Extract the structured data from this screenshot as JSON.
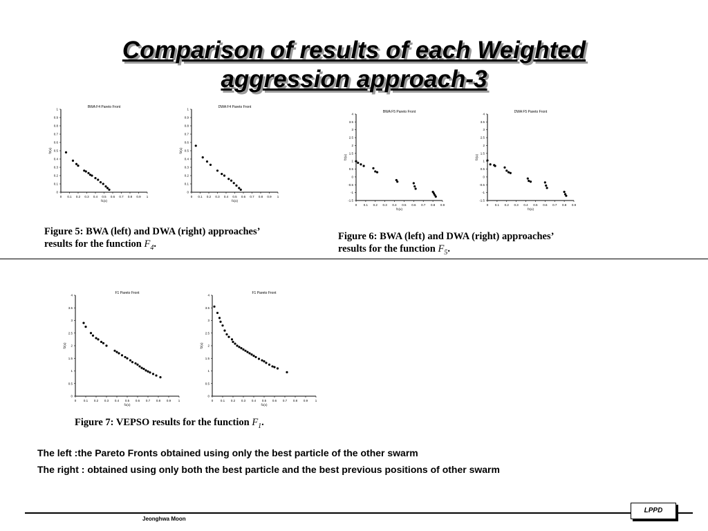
{
  "slide": {
    "title_line1": "Comparison of results of each Weighted",
    "title_line2": "aggression approach-3",
    "note_left": "The left :the Pareto Fronts obtained using only the best particle of the other swarm",
    "note_right": "The right : obtained using only both the best particle and the best previous positions of other swarm",
    "author": "Jeonghwa Moon",
    "badge": "LPPD"
  },
  "captions": {
    "fig5": {
      "line1": "Figure 5:  BWA (left) and DWA (right) approaches’",
      "line2_prefix": "results for the function ",
      "func": "F",
      "sub": "4",
      "suffix": "."
    },
    "fig6": {
      "line1": "Figure 6:  BWA (left) and DWA (right) approaches’",
      "line2_prefix": "results for the function ",
      "func": "F",
      "sub": "5",
      "suffix": "."
    },
    "fig7": {
      "line1_prefix": "Figure 7:  VEPSO results for the function ",
      "func": "F",
      "sub": "1",
      "suffix": "."
    }
  },
  "chart_data": [
    {
      "id": "fig5-left",
      "type": "scatter",
      "title": "BWA F4 Pareto Front",
      "xlabel": "f1(x)",
      "ylabel": "f2(x)",
      "xlim": [
        0,
        1
      ],
      "ylim": [
        0,
        1
      ],
      "xticks": [
        "0",
        "0.1",
        "0.2",
        "0.3",
        "0.4",
        "0.5",
        "0.6",
        "0.7",
        "0.8",
        "0.9",
        "1"
      ],
      "yticks": [
        "0",
        "0.1",
        "0.2",
        "0.3",
        "0.4",
        "0.5",
        "0.6",
        "0.7",
        "0.8",
        "0.9",
        "1"
      ],
      "points": [
        [
          0.06,
          0.48
        ],
        [
          0.14,
          0.38
        ],
        [
          0.18,
          0.34
        ],
        [
          0.2,
          0.32
        ],
        [
          0.27,
          0.26
        ],
        [
          0.29,
          0.25
        ],
        [
          0.32,
          0.23
        ],
        [
          0.34,
          0.21
        ],
        [
          0.36,
          0.2
        ],
        [
          0.4,
          0.17
        ],
        [
          0.43,
          0.15
        ],
        [
          0.46,
          0.12
        ],
        [
          0.49,
          0.1
        ],
        [
          0.52,
          0.07
        ],
        [
          0.54,
          0.05
        ],
        [
          0.56,
          0.03
        ]
      ]
    },
    {
      "id": "fig5-right",
      "type": "scatter",
      "title": "DWA F4 Pareto Front",
      "xlabel": "f1(x)",
      "ylabel": "f2(x)",
      "xlim": [
        0,
        1
      ],
      "ylim": [
        0,
        1
      ],
      "xticks": [
        "0",
        "0.1",
        "0.2",
        "0.3",
        "0.4",
        "0.5",
        "0.6",
        "0.7",
        "0.8",
        "0.9",
        "1"
      ],
      "yticks": [
        "0",
        "0.1",
        "0.2",
        "0.3",
        "0.4",
        "0.5",
        "0.6",
        "0.7",
        "0.8",
        "0.9",
        "1"
      ],
      "points": [
        [
          0.05,
          0.56
        ],
        [
          0.13,
          0.42
        ],
        [
          0.18,
          0.37
        ],
        [
          0.22,
          0.33
        ],
        [
          0.3,
          0.26
        ],
        [
          0.35,
          0.22
        ],
        [
          0.38,
          0.2
        ],
        [
          0.43,
          0.16
        ],
        [
          0.46,
          0.14
        ],
        [
          0.49,
          0.11
        ],
        [
          0.52,
          0.08
        ],
        [
          0.55,
          0.05
        ],
        [
          0.57,
          0.03
        ]
      ]
    },
    {
      "id": "fig6-left",
      "type": "scatter",
      "title": "BWA F5 Pareto Front",
      "xlabel": "f1(x)",
      "ylabel": "f2(x)",
      "xlim": [
        0,
        0.9
      ],
      "ylim": [
        -1.5,
        4
      ],
      "xticks": [
        "0",
        "0.1",
        "0.2",
        "0.3",
        "0.4",
        "0.5",
        "0.6",
        "0.7",
        "0.8",
        "0.9"
      ],
      "yticks": [
        "-1.5",
        "-1",
        "-0.5",
        "0",
        "0.5",
        "1",
        "1.5",
        "2",
        "2.5",
        "3",
        "3.5",
        "4"
      ],
      "points": [
        [
          0.0,
          1.0
        ],
        [
          0.02,
          0.9
        ],
        [
          0.05,
          0.8
        ],
        [
          0.08,
          0.7
        ],
        [
          0.18,
          0.55
        ],
        [
          0.2,
          0.35
        ],
        [
          0.22,
          0.3
        ],
        [
          0.42,
          -0.2
        ],
        [
          0.43,
          -0.3
        ],
        [
          0.6,
          -0.4
        ],
        [
          0.61,
          -0.6
        ],
        [
          0.62,
          -0.75
        ],
        [
          0.8,
          -0.95
        ],
        [
          0.81,
          -1.05
        ],
        [
          0.82,
          -1.15
        ],
        [
          0.83,
          -1.25
        ]
      ]
    },
    {
      "id": "fig6-right",
      "type": "scatter",
      "title": "DWA F5 Pareto Front",
      "xlabel": "f1(x)",
      "ylabel": "f2(x)",
      "xlim": [
        0,
        0.9
      ],
      "ylim": [
        -1.5,
        4
      ],
      "xticks": [
        "0",
        "0.1",
        "0.2",
        "0.3",
        "0.4",
        "0.5",
        "0.6",
        "0.7",
        "0.8",
        "0.9"
      ],
      "yticks": [
        "-1.5",
        "-1",
        "-0.5",
        "0",
        "0.5",
        "1",
        "1.5",
        "2",
        "2.5",
        "3",
        "3.5",
        "4"
      ],
      "points": [
        [
          0.0,
          1.05
        ],
        [
          0.03,
          0.8
        ],
        [
          0.07,
          0.75
        ],
        [
          0.08,
          0.7
        ],
        [
          0.18,
          0.6
        ],
        [
          0.2,
          0.4
        ],
        [
          0.22,
          0.3
        ],
        [
          0.24,
          0.25
        ],
        [
          0.42,
          -0.1
        ],
        [
          0.43,
          -0.25
        ],
        [
          0.45,
          -0.3
        ],
        [
          0.6,
          -0.35
        ],
        [
          0.61,
          -0.55
        ],
        [
          0.62,
          -0.7
        ],
        [
          0.8,
          -0.95
        ],
        [
          0.81,
          -1.1
        ],
        [
          0.82,
          -1.2
        ]
      ]
    },
    {
      "id": "fig7-left",
      "type": "scatter",
      "title": "F1 Pareto Front",
      "xlabel": "f1(x)",
      "ylabel": "f2(x)",
      "xlim": [
        0,
        1
      ],
      "ylim": [
        0,
        4
      ],
      "xticks": [
        "0",
        "0.1",
        "0.2",
        "0.3",
        "0.4",
        "0.5",
        "0.6",
        "0.7",
        "0.8",
        "0.9",
        "1"
      ],
      "yticks": [
        "0",
        "0.5",
        "1",
        "1.5",
        "2",
        "2.5",
        "3",
        "3.5",
        "4"
      ],
      "points": [
        [
          0.08,
          2.9
        ],
        [
          0.1,
          2.75
        ],
        [
          0.15,
          2.5
        ],
        [
          0.17,
          2.4
        ],
        [
          0.2,
          2.3
        ],
        [
          0.22,
          2.25
        ],
        [
          0.25,
          2.15
        ],
        [
          0.27,
          2.1
        ],
        [
          0.3,
          2.0
        ],
        [
          0.38,
          1.8
        ],
        [
          0.4,
          1.75
        ],
        [
          0.42,
          1.7
        ],
        [
          0.45,
          1.62
        ],
        [
          0.48,
          1.55
        ],
        [
          0.5,
          1.5
        ],
        [
          0.53,
          1.42
        ],
        [
          0.55,
          1.35
        ],
        [
          0.58,
          1.3
        ],
        [
          0.6,
          1.25
        ],
        [
          0.62,
          1.18
        ],
        [
          0.64,
          1.12
        ],
        [
          0.66,
          1.08
        ],
        [
          0.68,
          1.02
        ],
        [
          0.7,
          0.98
        ],
        [
          0.72,
          0.94
        ],
        [
          0.75,
          0.88
        ],
        [
          0.78,
          0.82
        ],
        [
          0.82,
          0.75
        ]
      ]
    },
    {
      "id": "fig7-right",
      "type": "scatter",
      "title": "F1 Pareto Front",
      "xlabel": "f1(x)",
      "ylabel": "f2(x)",
      "xlim": [
        0,
        1
      ],
      "ylim": [
        0,
        4
      ],
      "xticks": [
        "0",
        "0.1",
        "0.2",
        "0.3",
        "0.4",
        "0.5",
        "0.6",
        "0.7",
        "0.8",
        "0.9",
        "1"
      ],
      "yticks": [
        "0",
        "0.5",
        "1",
        "1.5",
        "2",
        "2.5",
        "3",
        "3.5",
        "4"
      ],
      "points": [
        [
          0.02,
          3.55
        ],
        [
          0.05,
          3.3
        ],
        [
          0.07,
          3.1
        ],
        [
          0.08,
          2.95
        ],
        [
          0.1,
          2.8
        ],
        [
          0.12,
          2.6
        ],
        [
          0.14,
          2.45
        ],
        [
          0.16,
          2.35
        ],
        [
          0.19,
          2.25
        ],
        [
          0.2,
          2.15
        ],
        [
          0.22,
          2.08
        ],
        [
          0.24,
          2.0
        ],
        [
          0.26,
          1.95
        ],
        [
          0.28,
          1.9
        ],
        [
          0.3,
          1.85
        ],
        [
          0.32,
          1.8
        ],
        [
          0.34,
          1.75
        ],
        [
          0.36,
          1.7
        ],
        [
          0.38,
          1.65
        ],
        [
          0.4,
          1.6
        ],
        [
          0.42,
          1.55
        ],
        [
          0.45,
          1.48
        ],
        [
          0.48,
          1.42
        ],
        [
          0.5,
          1.38
        ],
        [
          0.52,
          1.32
        ],
        [
          0.55,
          1.25
        ],
        [
          0.58,
          1.18
        ],
        [
          0.6,
          1.15
        ],
        [
          0.63,
          1.1
        ],
        [
          0.72,
          0.95
        ]
      ]
    }
  ]
}
